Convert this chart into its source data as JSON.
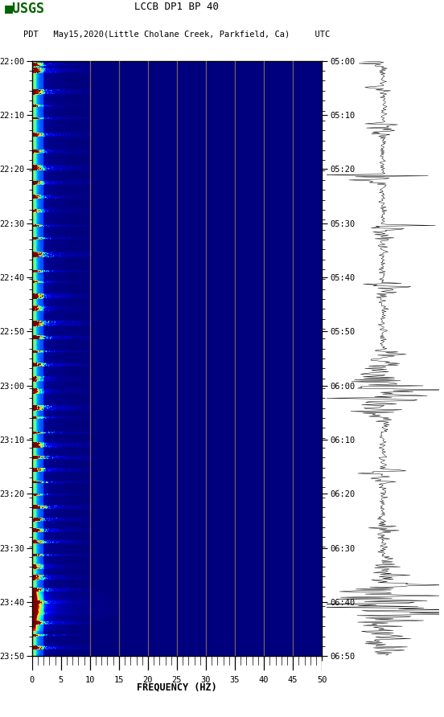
{
  "title_line1": "LCCB DP1 BP 40",
  "title_line2": "PDT   May15,2020(Little Cholane Creek, Parkfield, Ca)     UTC",
  "xlabel": "FREQUENCY (HZ)",
  "freq_min": 0,
  "freq_max": 50,
  "freq_ticks": [
    0,
    5,
    10,
    15,
    20,
    25,
    30,
    35,
    40,
    45,
    50
  ],
  "time_labels_left": [
    "22:00",
    "22:10",
    "22:20",
    "22:30",
    "22:40",
    "22:50",
    "23:00",
    "23:10",
    "23:20",
    "23:30",
    "23:40",
    "23:50"
  ],
  "time_labels_right": [
    "05:00",
    "05:10",
    "05:20",
    "05:30",
    "05:40",
    "05:50",
    "06:00",
    "06:10",
    "06:20",
    "06:30",
    "06:40",
    "06:50"
  ],
  "n_time_steps": 720,
  "n_freq_bins": 500,
  "grid_freqs": [
    10,
    15,
    20,
    25,
    30,
    35,
    40,
    45
  ],
  "usgs_green": "#006400",
  "grid_line_color": "#8B7355",
  "fig_width": 5.52,
  "fig_height": 8.92,
  "dpi": 100
}
